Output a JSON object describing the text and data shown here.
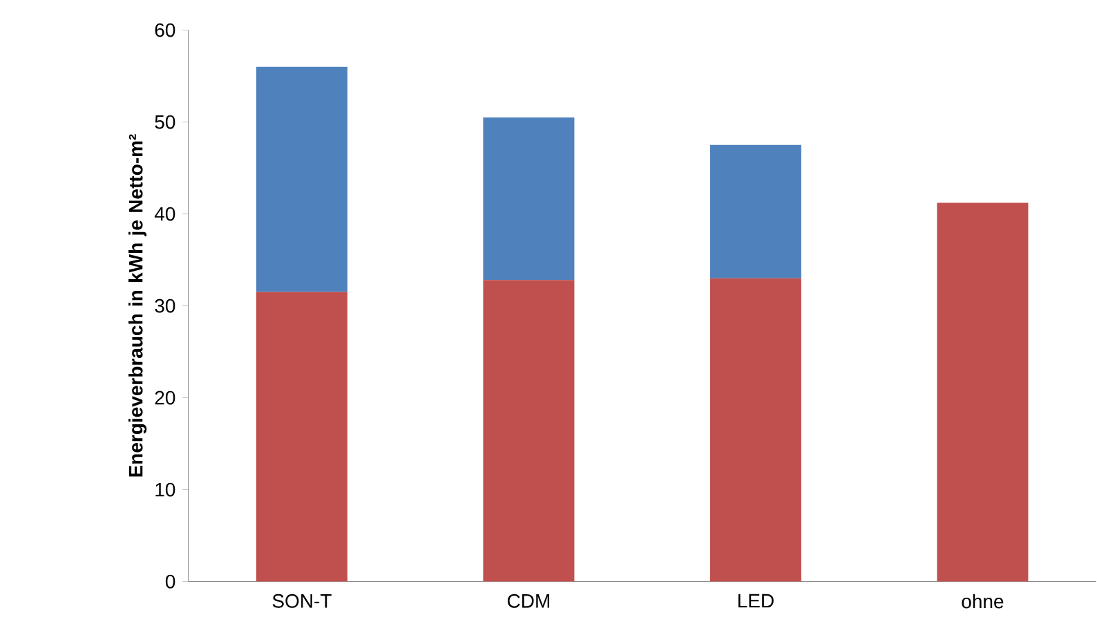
{
  "chart_data": {
    "type": "bar",
    "stacked": true,
    "ylabel": "Energieverbrauch in kWh je Netto-m²",
    "categories": [
      "SON-T",
      "CDM",
      "LED",
      "ohne"
    ],
    "series": [
      {
        "color": "#c0504d",
        "values": [
          31.5,
          32.8,
          33.0,
          41.2
        ]
      },
      {
        "color": "#4f81bd",
        "values": [
          24.5,
          17.7,
          14.5,
          null
        ]
      }
    ],
    "ylim": [
      0,
      60
    ],
    "yticks": [
      0,
      10,
      20,
      30,
      40,
      50,
      60
    ],
    "grid": false
  }
}
